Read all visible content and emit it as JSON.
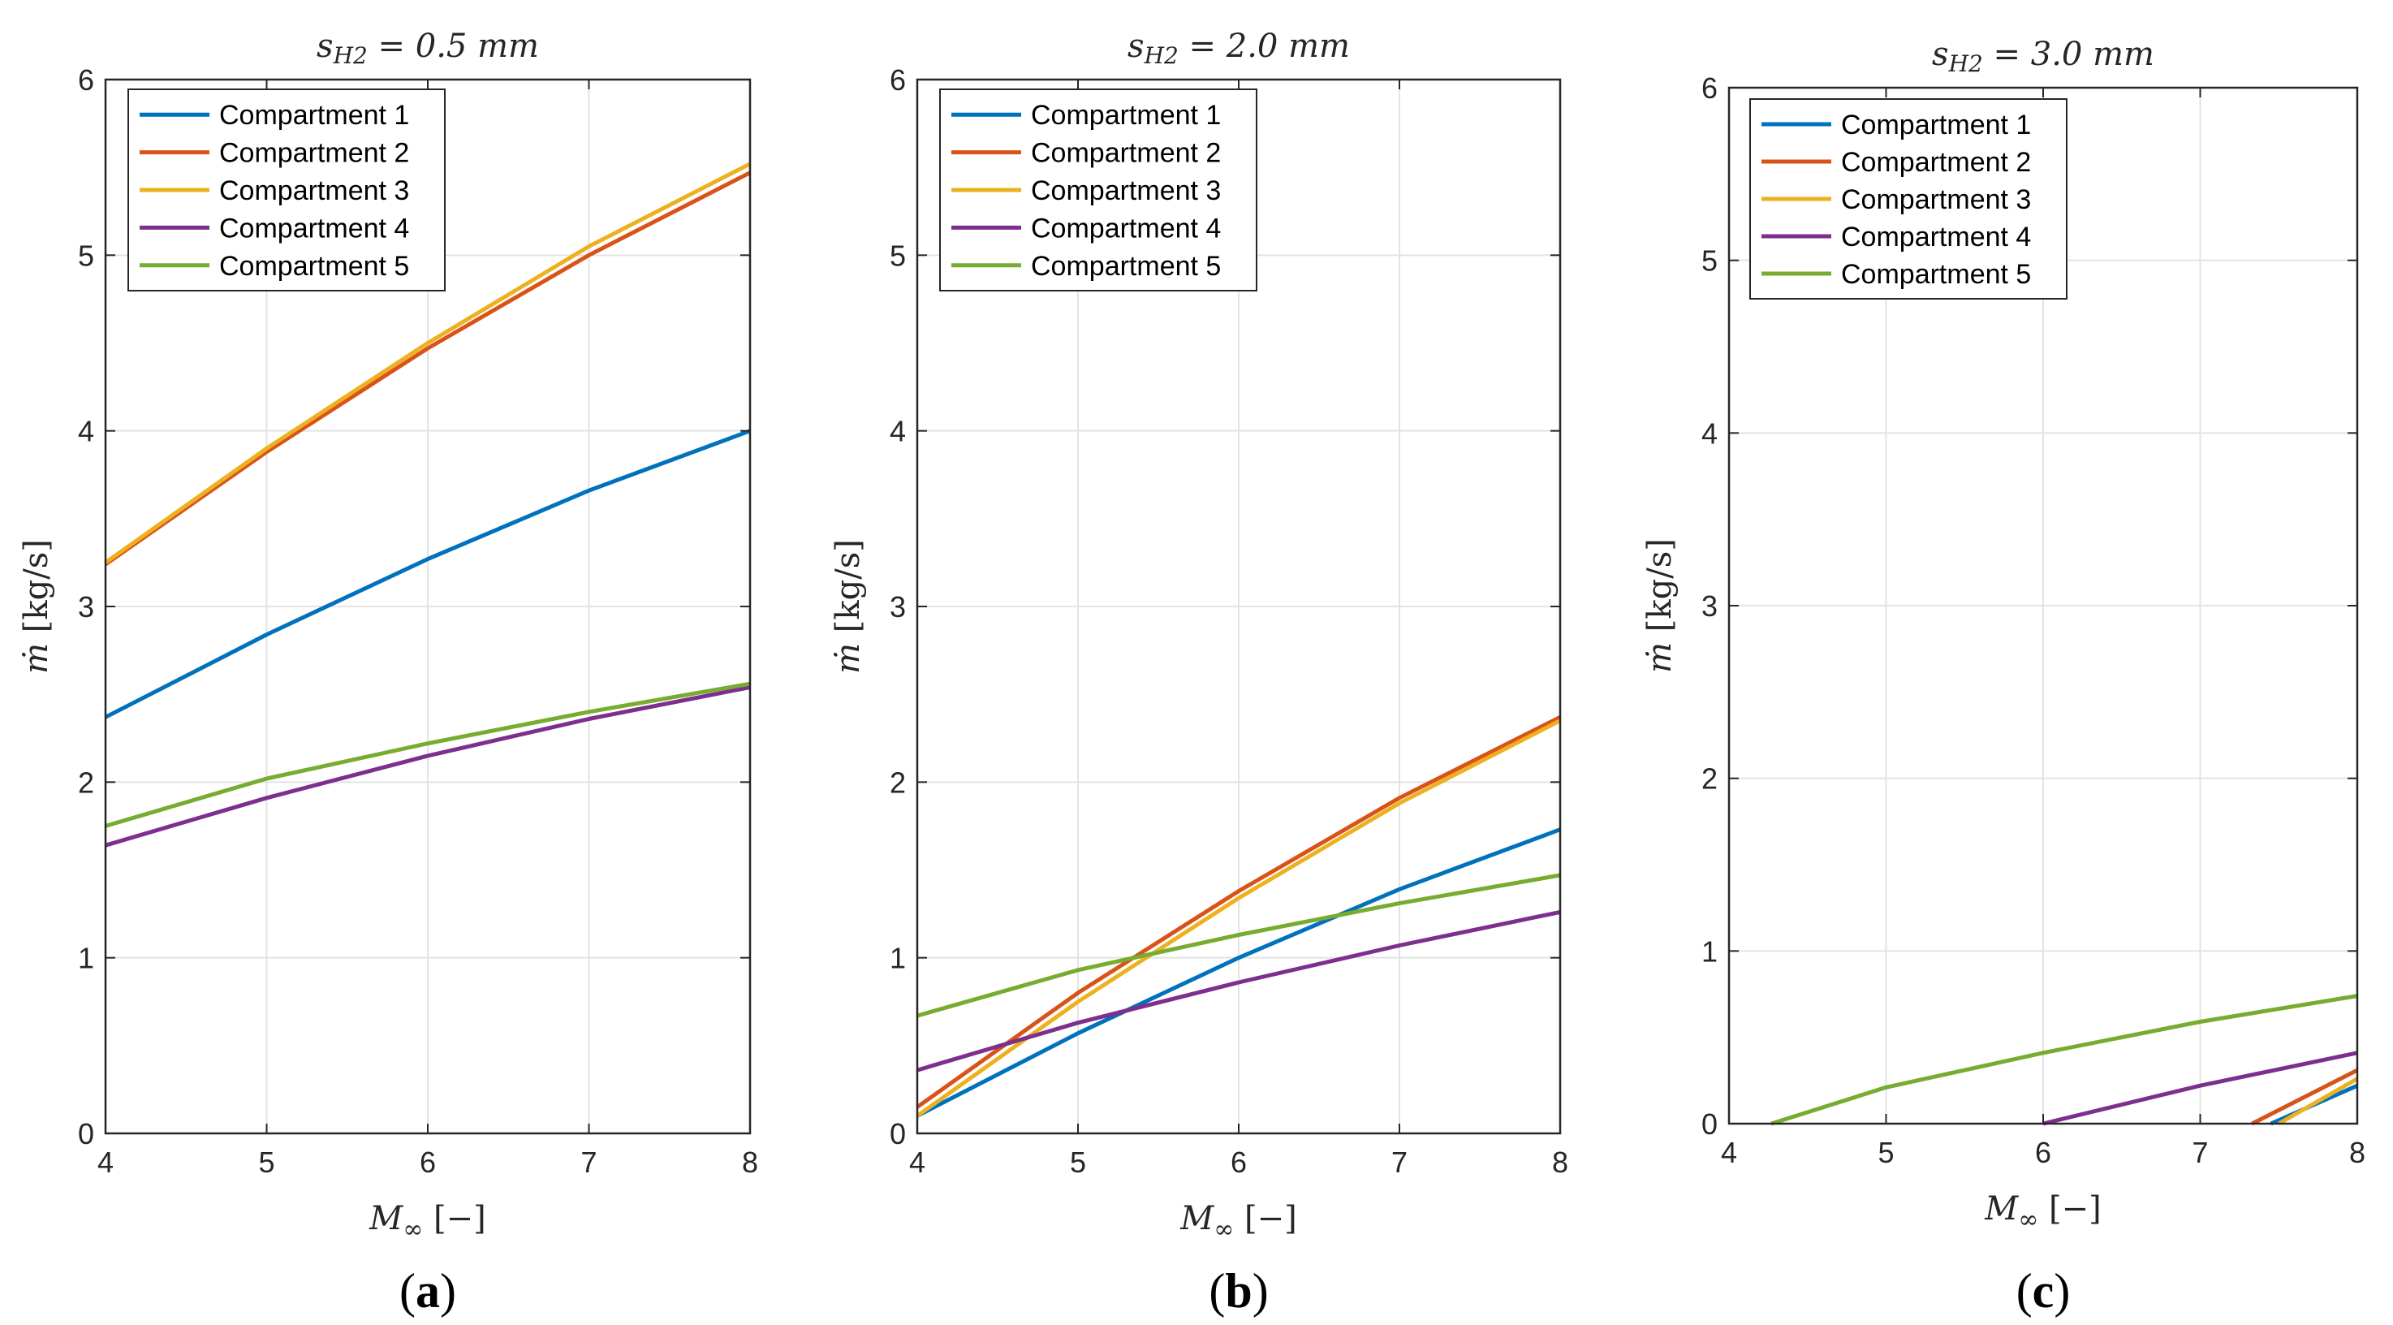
{
  "colors": {
    "Compartment 1": "#0072BD",
    "Compartment 2": "#D95319",
    "Compartment 3": "#EDB120",
    "Compartment 4": "#7E2F8E",
    "Compartment 5": "#77AC30"
  },
  "chart_data": [
    {
      "type": "line",
      "panel": "(a)",
      "panel_letter": "a",
      "title": "s_H2 = 0.5 mm",
      "title_base": "s",
      "title_sub": "H2",
      "title_rest": " = 0.5 mm",
      "xlabel_base": "M",
      "xlabel_sub": "∞",
      "xlabel_rest": " [−]",
      "ylabel_base": "ṁ",
      "ylabel_rest": " [kg/s]",
      "xlim": [
        4,
        8
      ],
      "ylim": [
        0,
        6
      ],
      "xticks": [
        "4",
        "5",
        "6",
        "7",
        "8"
      ],
      "yticks": [
        "0",
        "1",
        "2",
        "3",
        "4",
        "5",
        "6"
      ],
      "grid": true,
      "legend": "top-left",
      "series": [
        {
          "name": "Compartment 1",
          "x": [
            4,
            5,
            6,
            7,
            8
          ],
          "y": [
            2.37,
            2.84,
            3.27,
            3.66,
            4.0
          ]
        },
        {
          "name": "Compartment 2",
          "x": [
            4,
            5,
            6,
            7,
            8
          ],
          "y": [
            3.24,
            3.88,
            4.47,
            5.0,
            5.47
          ]
        },
        {
          "name": "Compartment 3",
          "x": [
            4,
            5,
            6,
            7,
            8
          ],
          "y": [
            3.25,
            3.9,
            4.5,
            5.05,
            5.52
          ]
        },
        {
          "name": "Compartment 4",
          "x": [
            4,
            5,
            6,
            7,
            8
          ],
          "y": [
            1.64,
            1.91,
            2.15,
            2.36,
            2.54
          ]
        },
        {
          "name": "Compartment 5",
          "x": [
            4,
            5,
            6,
            7,
            8
          ],
          "y": [
            1.75,
            2.02,
            2.22,
            2.4,
            2.56
          ]
        }
      ]
    },
    {
      "type": "line",
      "panel": "(b)",
      "panel_letter": "b",
      "title": "s_H2 = 2.0 mm",
      "title_base": "s",
      "title_sub": "H2",
      "title_rest": " = 2.0 mm",
      "xlabel_base": "M",
      "xlabel_sub": "∞",
      "xlabel_rest": " [−]",
      "ylabel_base": "ṁ",
      "ylabel_rest": " [kg/s]",
      "xlim": [
        4,
        8
      ],
      "ylim": [
        0,
        6
      ],
      "xticks": [
        "4",
        "5",
        "6",
        "7",
        "8"
      ],
      "yticks": [
        "0",
        "1",
        "2",
        "3",
        "4",
        "5",
        "6"
      ],
      "grid": true,
      "legend": "top-left",
      "series": [
        {
          "name": "Compartment 1",
          "x": [
            4,
            5,
            6,
            7,
            8
          ],
          "y": [
            0.1,
            0.57,
            1.0,
            1.39,
            1.73
          ]
        },
        {
          "name": "Compartment 2",
          "x": [
            4,
            5,
            6,
            7,
            8
          ],
          "y": [
            0.15,
            0.8,
            1.38,
            1.91,
            2.37
          ]
        },
        {
          "name": "Compartment 3",
          "x": [
            4,
            5,
            6,
            7,
            8
          ],
          "y": [
            0.1,
            0.75,
            1.34,
            1.88,
            2.35
          ]
        },
        {
          "name": "Compartment 4",
          "x": [
            4,
            5,
            6,
            7,
            8
          ],
          "y": [
            0.36,
            0.63,
            0.86,
            1.07,
            1.26
          ]
        },
        {
          "name": "Compartment 5",
          "x": [
            4,
            5,
            6,
            7,
            8
          ],
          "y": [
            0.67,
            0.93,
            1.13,
            1.31,
            1.47
          ]
        }
      ]
    },
    {
      "type": "line",
      "panel": "(c)",
      "panel_letter": "c",
      "title": "s_H2 = 3.0 mm",
      "title_base": "s",
      "title_sub": "H2",
      "title_rest": " = 3.0 mm",
      "xlabel_base": "M",
      "xlabel_sub": "∞",
      "xlabel_rest": " [−]",
      "ylabel_base": "ṁ",
      "ylabel_rest": " [kg/s]",
      "xlim": [
        4,
        8
      ],
      "ylim": [
        0,
        6
      ],
      "xticks": [
        "4",
        "5",
        "6",
        "7",
        "8"
      ],
      "yticks": [
        "0",
        "1",
        "2",
        "3",
        "4",
        "5",
        "6"
      ],
      "grid": true,
      "legend": "top-left",
      "series": [
        {
          "name": "Compartment 1",
          "x": [
            7.45,
            8
          ],
          "y": [
            0.0,
            0.22
          ]
        },
        {
          "name": "Compartment 2",
          "x": [
            7.33,
            8
          ],
          "y": [
            0.0,
            0.31
          ]
        },
        {
          "name": "Compartment 3",
          "x": [
            7.5,
            8
          ],
          "y": [
            0.0,
            0.26
          ]
        },
        {
          "name": "Compartment 4",
          "x": [
            6,
            7,
            8
          ],
          "y": [
            0.0,
            0.22,
            0.41
          ]
        },
        {
          "name": "Compartment 5",
          "x": [
            4.27,
            5,
            6,
            7,
            8
          ],
          "y": [
            0.0,
            0.21,
            0.41,
            0.59,
            0.74
          ]
        }
      ]
    }
  ]
}
